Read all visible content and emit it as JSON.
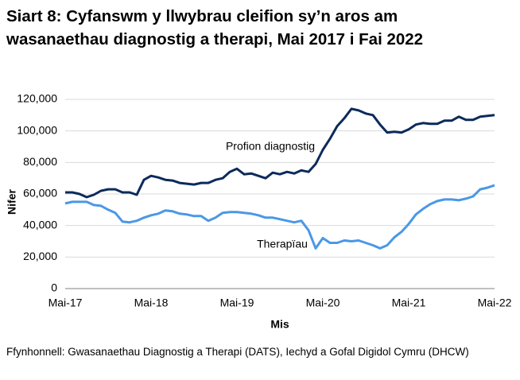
{
  "chart_data": {
    "type": "line",
    "title": "Siart 8: Cyfanswm y llwybrau cleifion sy’n aros am wasanaethau diagnostig a therapi, Mai 2017 i Fai 2022",
    "x_label": "Mis",
    "y_label": "Nifer",
    "source": "Ffynhonnell: Gwasanaethau Diagnostig a Therapi (DATS), Iechyd a Gofal Digidol Cymru (DHCW)",
    "categories": [
      "Mai-17",
      null,
      null,
      null,
      null,
      null,
      null,
      null,
      null,
      null,
      null,
      null,
      "Mai-18",
      null,
      null,
      null,
      null,
      null,
      null,
      null,
      null,
      null,
      null,
      null,
      "Mai-19",
      null,
      null,
      null,
      null,
      null,
      null,
      null,
      null,
      null,
      null,
      null,
      "Mai-20",
      null,
      null,
      null,
      null,
      null,
      null,
      null,
      null,
      null,
      null,
      null,
      "Mai-21",
      null,
      null,
      null,
      null,
      null,
      null,
      null,
      null,
      null,
      null,
      null,
      "Mai-22"
    ],
    "series": [
      {
        "name": "Profion diagnostig",
        "color": "#0c2a5c",
        "values": [
          61000,
          61000,
          60000,
          58000,
          59500,
          62000,
          63000,
          63000,
          61000,
          61000,
          59500,
          69000,
          71500,
          70500,
          69000,
          68500,
          67000,
          66500,
          66000,
          67000,
          67000,
          69000,
          70000,
          74000,
          76000,
          72500,
          73000,
          71500,
          70000,
          73500,
          72500,
          74000,
          73000,
          75000,
          74000,
          79000,
          88000,
          95000,
          103000,
          108000,
          114000,
          113000,
          111000,
          110000,
          104000,
          99000,
          99500,
          99000,
          101000,
          104000,
          105000,
          104500,
          104500,
          106500,
          106500,
          109000,
          107000,
          107000,
          109000,
          109500,
          110000
        ]
      },
      {
        "name": "Therapïau",
        "color": "#4a98e6",
        "values": [
          54000,
          55000,
          55000,
          55000,
          53000,
          52500,
          50000,
          48000,
          42500,
          42000,
          43000,
          45000,
          46500,
          47500,
          49500,
          49000,
          47500,
          47000,
          46000,
          46000,
          43000,
          45000,
          48000,
          48500,
          48500,
          48000,
          47500,
          46500,
          45000,
          45000,
          44000,
          43000,
          42000,
          43000,
          37000,
          25500,
          32000,
          29000,
          29000,
          30500,
          30000,
          30500,
          29000,
          27500,
          25500,
          27500,
          32500,
          36000,
          41000,
          47000,
          50500,
          53500,
          55500,
          56500,
          56500,
          56000,
          57000,
          58500,
          63000,
          64000,
          65500
        ]
      }
    ],
    "ylim": [
      0,
      120000
    ],
    "yticks": [
      0,
      {
        "value": 20000,
        "label": "20,000"
      },
      {
        "value": 40000,
        "label": "40,000"
      },
      {
        "value": 60000,
        "label": "60,000"
      },
      {
        "value": 80000,
        "label": "80,000"
      },
      {
        "value": 100000,
        "label": "100,000"
      },
      {
        "value": 120000,
        "label": "120,000"
      }
    ],
    "grid": true
  }
}
